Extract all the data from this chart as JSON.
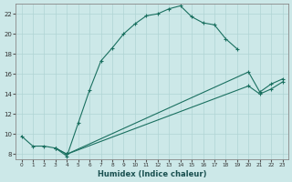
{
  "xlabel": "Humidex (Indice chaleur)",
  "bg_color": "#cce8e8",
  "grid_color": "#b0d4d4",
  "line_color": "#1a7060",
  "xlim": [
    -0.5,
    23.5
  ],
  "ylim": [
    7.5,
    23.0
  ],
  "xticks": [
    0,
    1,
    2,
    3,
    4,
    5,
    6,
    7,
    8,
    9,
    10,
    11,
    12,
    13,
    14,
    15,
    16,
    17,
    18,
    19,
    20,
    21,
    22,
    23
  ],
  "yticks": [
    8,
    10,
    12,
    14,
    16,
    18,
    20,
    22
  ],
  "series0": {
    "x": [
      0,
      1,
      2,
      3,
      4,
      5,
      6,
      7,
      8,
      9,
      10,
      11,
      12,
      13,
      14,
      15,
      16,
      17,
      18,
      19
    ],
    "y": [
      9.8,
      8.8,
      8.8,
      8.6,
      7.8,
      11.1,
      14.4,
      17.3,
      18.6,
      20.0,
      21.0,
      21.8,
      22.0,
      22.5,
      22.8,
      21.7,
      21.1,
      20.9,
      19.5,
      18.5
    ]
  },
  "series1": {
    "x": [
      3,
      4,
      20,
      21,
      22,
      23
    ],
    "y": [
      8.6,
      8.0,
      16.2,
      14.2,
      15.0,
      15.5
    ]
  },
  "series2": {
    "x": [
      3,
      4,
      20,
      21,
      22,
      23
    ],
    "y": [
      8.6,
      8.0,
      14.8,
      14.0,
      14.5,
      15.2
    ]
  }
}
